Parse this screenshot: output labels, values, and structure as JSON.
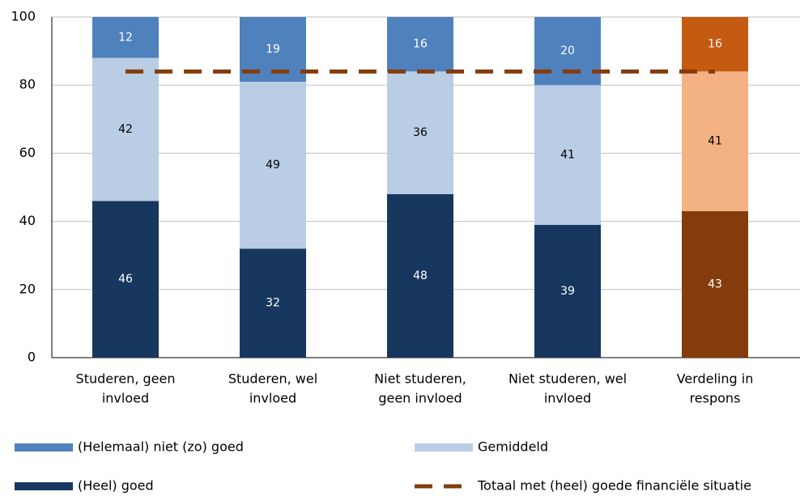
{
  "chart_data": {
    "type": "bar",
    "stacked": true,
    "categories": [
      [
        "Studeren, geen",
        "invloed"
      ],
      [
        "Studeren, wel",
        "invloed"
      ],
      [
        "Niet studeren,",
        "geen invloed"
      ],
      [
        "Niet studeren, wel",
        "invloed"
      ],
      [
        "Verdeling in",
        "respons"
      ]
    ],
    "series": [
      {
        "name": "(Heel) goed",
        "color": "#17375e",
        "bar_colors": [
          "#17375e",
          "#17375e",
          "#17375e",
          "#17375e",
          "#843c0c"
        ],
        "label_color": "#ffffff",
        "values": [
          46,
          32,
          48,
          39,
          43
        ]
      },
      {
        "name": "Gemiddeld",
        "color": "#b9cde5",
        "bar_colors": [
          "#b9cde5",
          "#b9cde5",
          "#b9cde5",
          "#b9cde5",
          "#f4b183"
        ],
        "label_color": "#000000",
        "values": [
          42,
          49,
          36,
          41,
          41
        ]
      },
      {
        "name": "(Helemaal) niet (zo) goed",
        "color": "#4f81bd",
        "bar_colors": [
          "#4f81bd",
          "#4f81bd",
          "#4f81bd",
          "#4f81bd",
          "#c55a11"
        ],
        "label_color": "#ffffff",
        "values": [
          12,
          19,
          16,
          20,
          16
        ]
      },
      {
        "name": "Totaal met (heel) goede financiële situatie",
        "type": "line",
        "dashed": true,
        "color": "#843c0c",
        "values": [
          84,
          84,
          84,
          84,
          84
        ]
      }
    ],
    "ylim": [
      0,
      100
    ],
    "yticks": [
      0,
      20,
      40,
      60,
      80,
      100
    ],
    "grid": true
  }
}
